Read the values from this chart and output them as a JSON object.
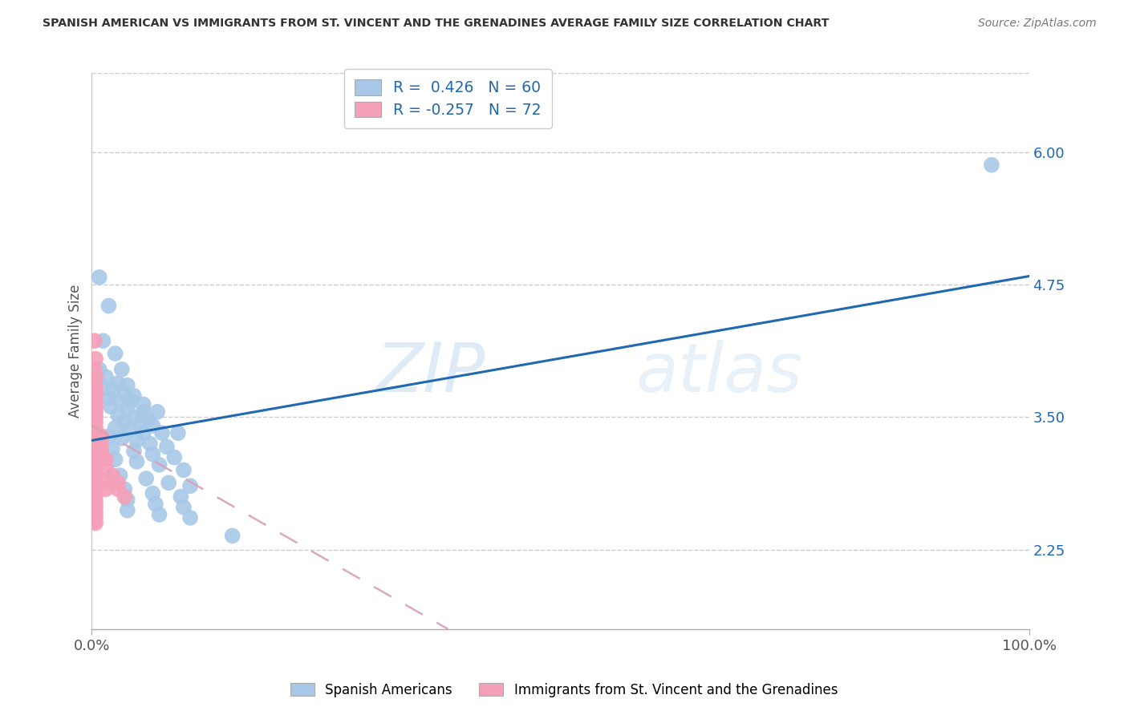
{
  "title": "SPANISH AMERICAN VS IMMIGRANTS FROM ST. VINCENT AND THE GRENADINES AVERAGE FAMILY SIZE CORRELATION CHART",
  "source": "Source: ZipAtlas.com",
  "ylabel": "Average Family Size",
  "xlim": [
    0,
    1.0
  ],
  "ylim": [
    1.5,
    6.75
  ],
  "yticks": [
    2.25,
    3.5,
    4.75,
    6.0
  ],
  "xticks": [
    0.0,
    1.0
  ],
  "xticklabels": [
    "0.0%",
    "100.0%"
  ],
  "r_blue": 0.426,
  "n_blue": 60,
  "r_pink": -0.257,
  "n_pink": 72,
  "blue_color": "#a8c8e8",
  "pink_color": "#f4a0b8",
  "blue_line_color": "#2068b0",
  "pink_line_color": "#d8a0b8",
  "watermark_zip": "ZIP",
  "watermark_atlas": "atlas",
  "blue_points": [
    [
      0.008,
      4.82
    ],
    [
      0.018,
      4.55
    ],
    [
      0.012,
      4.22
    ],
    [
      0.025,
      4.1
    ],
    [
      0.008,
      3.95
    ],
    [
      0.032,
      3.95
    ],
    [
      0.015,
      3.88
    ],
    [
      0.028,
      3.82
    ],
    [
      0.038,
      3.8
    ],
    [
      0.012,
      3.78
    ],
    [
      0.022,
      3.75
    ],
    [
      0.035,
      3.72
    ],
    [
      0.045,
      3.7
    ],
    [
      0.018,
      3.68
    ],
    [
      0.03,
      3.65
    ],
    [
      0.042,
      3.65
    ],
    [
      0.055,
      3.62
    ],
    [
      0.02,
      3.6
    ],
    [
      0.038,
      3.58
    ],
    [
      0.055,
      3.55
    ],
    [
      0.07,
      3.55
    ],
    [
      0.028,
      3.52
    ],
    [
      0.045,
      3.5
    ],
    [
      0.06,
      3.48
    ],
    [
      0.035,
      3.45
    ],
    [
      0.052,
      3.43
    ],
    [
      0.065,
      3.42
    ],
    [
      0.025,
      3.4
    ],
    [
      0.04,
      3.38
    ],
    [
      0.055,
      3.35
    ],
    [
      0.075,
      3.35
    ],
    [
      0.092,
      3.35
    ],
    [
      0.018,
      3.32
    ],
    [
      0.032,
      3.3
    ],
    [
      0.048,
      3.28
    ],
    [
      0.062,
      3.25
    ],
    [
      0.08,
      3.22
    ],
    [
      0.022,
      3.2
    ],
    [
      0.045,
      3.18
    ],
    [
      0.065,
      3.15
    ],
    [
      0.088,
      3.12
    ],
    [
      0.025,
      3.1
    ],
    [
      0.048,
      3.08
    ],
    [
      0.072,
      3.05
    ],
    [
      0.098,
      3.0
    ],
    [
      0.03,
      2.95
    ],
    [
      0.058,
      2.92
    ],
    [
      0.082,
      2.88
    ],
    [
      0.105,
      2.85
    ],
    [
      0.035,
      2.82
    ],
    [
      0.065,
      2.78
    ],
    [
      0.095,
      2.75
    ],
    [
      0.038,
      2.72
    ],
    [
      0.068,
      2.68
    ],
    [
      0.098,
      2.65
    ],
    [
      0.038,
      2.62
    ],
    [
      0.072,
      2.58
    ],
    [
      0.105,
      2.55
    ],
    [
      0.15,
      2.38
    ],
    [
      0.96,
      5.88
    ]
  ],
  "pink_points": [
    [
      0.003,
      4.22
    ],
    [
      0.004,
      4.05
    ],
    [
      0.003,
      3.95
    ],
    [
      0.004,
      3.88
    ],
    [
      0.003,
      3.82
    ],
    [
      0.004,
      3.78
    ],
    [
      0.003,
      3.75
    ],
    [
      0.004,
      3.72
    ],
    [
      0.003,
      3.68
    ],
    [
      0.004,
      3.65
    ],
    [
      0.003,
      3.62
    ],
    [
      0.004,
      3.6
    ],
    [
      0.003,
      3.58
    ],
    [
      0.004,
      3.55
    ],
    [
      0.003,
      3.52
    ],
    [
      0.004,
      3.5
    ],
    [
      0.003,
      3.48
    ],
    [
      0.004,
      3.45
    ],
    [
      0.003,
      3.42
    ],
    [
      0.004,
      3.4
    ],
    [
      0.003,
      3.38
    ],
    [
      0.004,
      3.35
    ],
    [
      0.003,
      3.32
    ],
    [
      0.004,
      3.3
    ],
    [
      0.003,
      3.28
    ],
    [
      0.004,
      3.25
    ],
    [
      0.003,
      3.22
    ],
    [
      0.004,
      3.2
    ],
    [
      0.003,
      3.18
    ],
    [
      0.004,
      3.15
    ],
    [
      0.003,
      3.12
    ],
    [
      0.004,
      3.1
    ],
    [
      0.003,
      3.08
    ],
    [
      0.004,
      3.05
    ],
    [
      0.003,
      3.02
    ],
    [
      0.004,
      3.0
    ],
    [
      0.003,
      2.98
    ],
    [
      0.004,
      2.95
    ],
    [
      0.003,
      2.92
    ],
    [
      0.004,
      2.9
    ],
    [
      0.003,
      2.88
    ],
    [
      0.004,
      2.85
    ],
    [
      0.003,
      2.82
    ],
    [
      0.004,
      2.8
    ],
    [
      0.003,
      2.78
    ],
    [
      0.004,
      2.75
    ],
    [
      0.003,
      2.72
    ],
    [
      0.004,
      2.7
    ],
    [
      0.003,
      2.68
    ],
    [
      0.004,
      2.65
    ],
    [
      0.003,
      2.62
    ],
    [
      0.004,
      2.6
    ],
    [
      0.003,
      2.58
    ],
    [
      0.004,
      2.55
    ],
    [
      0.003,
      2.52
    ],
    [
      0.004,
      2.5
    ],
    [
      0.008,
      3.32
    ],
    [
      0.008,
      3.25
    ],
    [
      0.008,
      3.18
    ],
    [
      0.008,
      3.1
    ],
    [
      0.01,
      3.32
    ],
    [
      0.01,
      3.25
    ],
    [
      0.01,
      3.18
    ],
    [
      0.01,
      3.1
    ],
    [
      0.015,
      3.1
    ],
    [
      0.015,
      3.02
    ],
    [
      0.015,
      2.9
    ],
    [
      0.015,
      2.82
    ],
    [
      0.022,
      2.95
    ],
    [
      0.028,
      2.88
    ],
    [
      0.028,
      2.82
    ],
    [
      0.035,
      2.75
    ]
  ],
  "blue_trendline_x": [
    0.0,
    1.0
  ],
  "blue_trendline_y": [
    3.28,
    4.83
  ],
  "pink_trendline_x": [
    0.0,
    0.38
  ],
  "pink_trendline_y": [
    3.42,
    1.5
  ]
}
